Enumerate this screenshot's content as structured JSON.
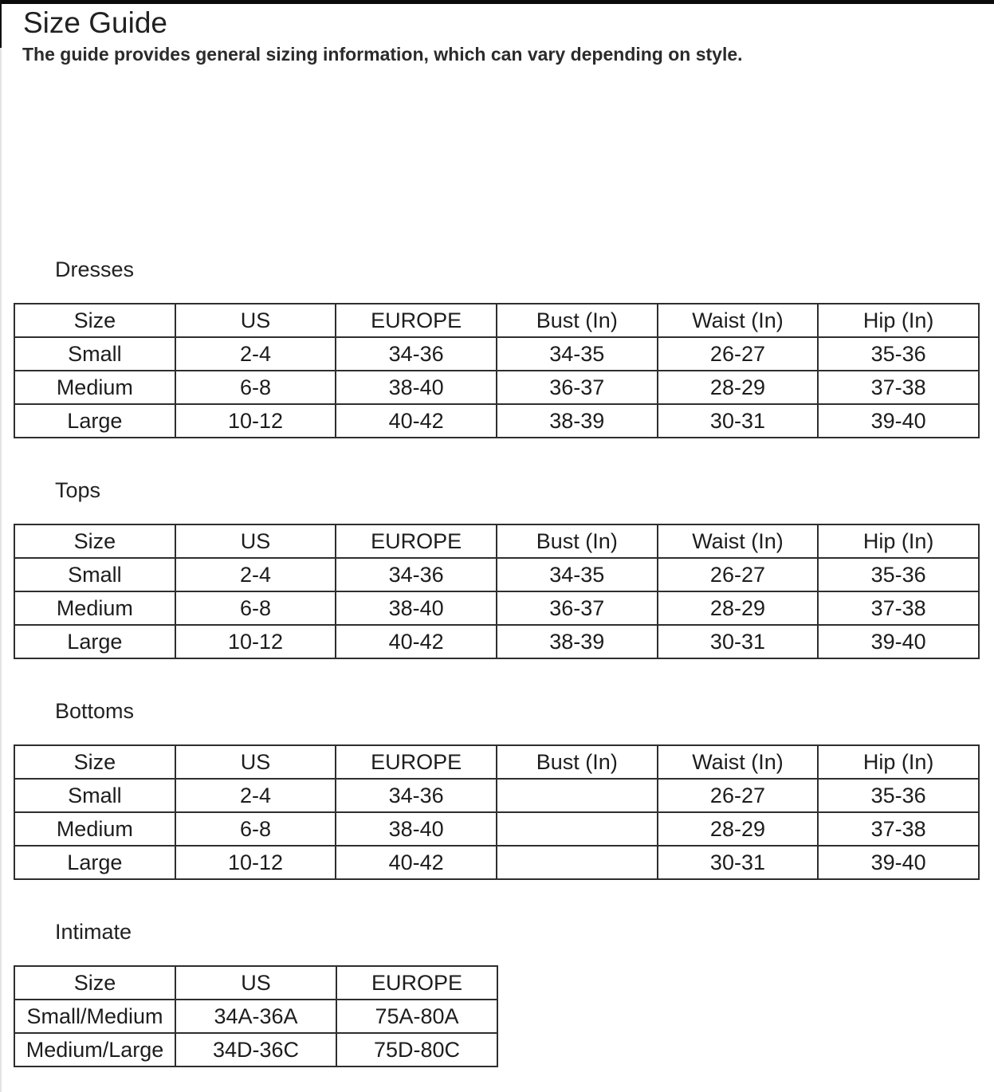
{
  "page": {
    "title": "Size Guide",
    "subtitle": "The guide provides general sizing information, which can vary depending on style."
  },
  "colors": {
    "top_bar": "#0b0b0b",
    "table_border": "#2e2e2e",
    "text": "#1d1d1d",
    "background": "#ffffff"
  },
  "sections": [
    {
      "label": "Dresses",
      "table": {
        "headers": [
          "Size",
          "US",
          "EUROPE",
          "Bust (In)",
          "Waist (In)",
          "Hip (In)"
        ],
        "rows": [
          [
            "Small",
            "2-4",
            "34-36",
            "34-35",
            "26-27",
            "35-36"
          ],
          [
            "Medium",
            "6-8",
            "38-40",
            "36-37",
            "28-29",
            "37-38"
          ],
          [
            "Large",
            "10-12",
            "40-42",
            "38-39",
            "30-31",
            "39-40"
          ]
        ]
      }
    },
    {
      "label": "Tops",
      "table": {
        "headers": [
          "Size",
          "US",
          "EUROPE",
          "Bust (In)",
          "Waist (In)",
          "Hip (In)"
        ],
        "rows": [
          [
            "Small",
            "2-4",
            "34-36",
            "34-35",
            "26-27",
            "35-36"
          ],
          [
            "Medium",
            "6-8",
            "38-40",
            "36-37",
            "28-29",
            "37-38"
          ],
          [
            "Large",
            "10-12",
            "40-42",
            "38-39",
            "30-31",
            "39-40"
          ]
        ]
      }
    },
    {
      "label": "Bottoms",
      "table": {
        "headers": [
          "Size",
          "US",
          "EUROPE",
          "Bust (In)",
          "Waist (In)",
          "Hip (In)"
        ],
        "rows": [
          [
            "Small",
            "2-4",
            "34-36",
            "",
            "26-27",
            "35-36"
          ],
          [
            "Medium",
            "6-8",
            "38-40",
            "",
            "28-29",
            "37-38"
          ],
          [
            "Large",
            "10-12",
            "40-42",
            "",
            "30-31",
            "39-40"
          ]
        ]
      }
    },
    {
      "label": "Intimate",
      "table": {
        "headers": [
          "Size",
          "US",
          "EUROPE"
        ],
        "rows": [
          [
            "Small/Medium",
            "34A-36A",
            "75A-80A"
          ],
          [
            "Medium/Large",
            "34D-36C",
            "75D-80C"
          ]
        ]
      }
    }
  ]
}
